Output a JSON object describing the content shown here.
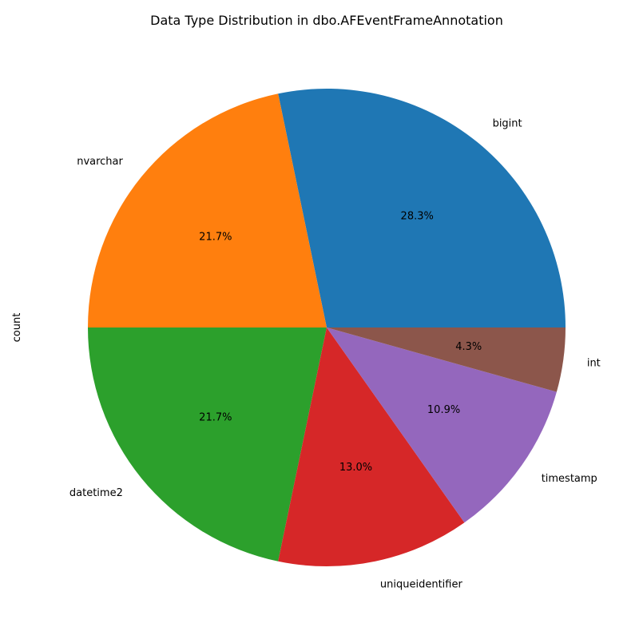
{
  "chart_data": {
    "type": "pie",
    "title": "Data Type Distribution in dbo.AFEventFrameAnnotation",
    "ylabel": "count",
    "categories": [
      "bigint",
      "nvarchar",
      "datetime2",
      "uniqueidentifier",
      "timestamp",
      "int"
    ],
    "values": [
      13,
      10,
      10,
      6,
      5,
      2
    ],
    "percent_labels": [
      "28.3%",
      "21.7%",
      "21.7%",
      "13.0%",
      "10.9%",
      "4.3%"
    ],
    "colors": [
      "#1f77b4",
      "#ff7f0e",
      "#2ca02c",
      "#d62728",
      "#9467bd",
      "#8c564b"
    ],
    "start_angle_deg": 0,
    "direction": "counterclockwise"
  }
}
